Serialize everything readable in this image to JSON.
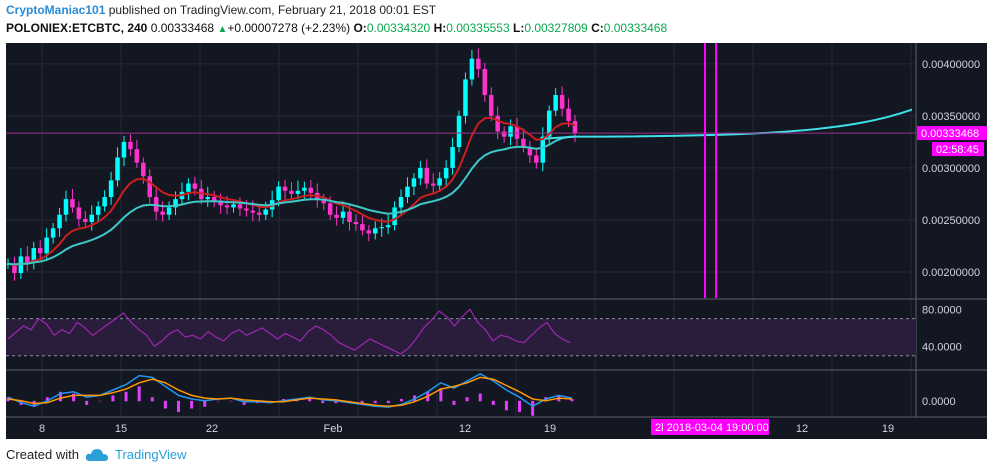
{
  "header": {
    "author": "CryptoManiac101",
    "published_text": "published on TradingView.com, February 21, 2018 00:01 EST",
    "symbol": "POLONIEX:ETCBTC, 240",
    "last": "0.00333468",
    "change": "+0.00007278 (+2.23%)",
    "o_label": "O:",
    "o_value": "0.00334320",
    "h_label": "H:",
    "h_value": "0.00335553",
    "l_label": "L:",
    "l_value": "0.00327809",
    "c_label": "C:",
    "c_value": "0.00333468"
  },
  "footer": {
    "created_with": "Created with",
    "brand": "TradingView"
  },
  "colors": {
    "background": "#131722",
    "grid": "#232836",
    "up_candle": "#00ffff",
    "down_candle": "#ff33cc",
    "ema_red": "#cc1f1f",
    "ema_teal": "#3fc8c8",
    "projection": "#40e0e8",
    "marker_lines": "#ff00ff",
    "rsi_line": "#9c27b0",
    "macd_blue": "#2196f3",
    "macd_signal": "#ff9800",
    "hist": "#e040fb"
  },
  "chart_data": [
    {
      "type": "line",
      "panel": "price",
      "ylim": [
        0.00175,
        0.0042
      ],
      "y_ticks": [
        "0.00400000",
        "0.00350000",
        "0.00300000",
        "0.00250000",
        "0.00200000"
      ],
      "last_price_label": "0.00333468",
      "countdown_label": "02:58:45",
      "series": [
        {
          "style": "candles",
          "values": [
            0.00208,
            0.00199,
            0.00215,
            0.00209,
            0.00223,
            0.00218,
            0.00233,
            0.00242,
            0.00255,
            0.0027,
            0.00262,
            0.00251,
            0.00248,
            0.00255,
            0.00263,
            0.00272,
            0.00288,
            0.0031,
            0.00325,
            0.00318,
            0.00305,
            0.00292,
            0.00272,
            0.00258,
            0.00255,
            0.00262,
            0.0027,
            0.00277,
            0.00285,
            0.0028,
            0.0027,
            0.00272,
            0.00268,
            0.00264,
            0.00262,
            0.00265,
            0.00261,
            0.00259,
            0.00257,
            0.00255,
            0.0026,
            0.00269,
            0.00282,
            0.00278,
            0.00275,
            0.00278,
            0.00281,
            0.00276,
            0.0027,
            0.00266,
            0.00255,
            0.00252,
            0.00258,
            0.00248,
            0.00246,
            0.0024,
            0.00237,
            0.00242,
            0.00243,
            0.00245,
            0.00262,
            0.00272,
            0.00282,
            0.0029,
            0.003,
            0.00285,
            0.00283,
            0.0029,
            0.003,
            0.0032,
            0.0035,
            0.00385,
            0.00405,
            0.00395,
            0.0037,
            0.0035,
            0.00335,
            0.0033,
            0.0034,
            0.00328,
            0.0032,
            0.00312,
            0.00305,
            0.0033,
            0.00355,
            0.0037,
            0.00357,
            0.00345,
            0.00333
          ]
        }
      ]
    },
    {
      "type": "line",
      "panel": "rsi",
      "ylim": [
        20,
        90
      ],
      "y_ticks": [
        "80.0000",
        "40.0000"
      ],
      "bands": [
        70,
        30
      ],
      "values": [
        48,
        55,
        62,
        58,
        70,
        64,
        52,
        58,
        54,
        66,
        60,
        52,
        58,
        64,
        70,
        76,
        66,
        58,
        52,
        40,
        46,
        54,
        58,
        50,
        52,
        48,
        56,
        50,
        46,
        54,
        58,
        52,
        56,
        60,
        54,
        48,
        54,
        50,
        46,
        56,
        62,
        58,
        52,
        44,
        40,
        36,
        42,
        48,
        44,
        40,
        36,
        32,
        38,
        48,
        60,
        68,
        78,
        72,
        62,
        72,
        80,
        66,
        58,
        46,
        52,
        50,
        46,
        44,
        52,
        60,
        66,
        54,
        48,
        44
      ]
    },
    {
      "type": "line",
      "panel": "macd",
      "ylim": [
        -0.00018,
        0.00032
      ],
      "y_ticks": [
        "0.0000"
      ],
      "series": [
        {
          "name": "MACD",
          "values": [
            4e-05,
            -2e-05,
            -6e-05,
            0.0,
            8e-05,
            0.0001,
            4e-05,
            6e-05,
            0.00012,
            0.00018,
            0.00028,
            0.00026,
            0.00016,
            6e-05,
            2e-05,
            0.0,
            2e-05,
            3e-05,
            -1e-05,
            -1e-05,
            -2e-05,
            0.0,
            2e-05,
            4e-05,
            1e-05,
            0.0,
            -2e-05,
            -4e-05,
            -6e-05,
            -7e-05,
            -4e-05,
            2e-05,
            0.0001,
            0.0002,
            0.00014,
            0.00022,
            0.0003,
            0.00022,
            0.00012,
            4e-05,
            -6e-05,
            2e-05,
            6e-05,
            3e-05
          ]
        },
        {
          "name": "Signal",
          "values": [
            2e-05,
            0.0,
            -3e-05,
            -2e-05,
            3e-05,
            6e-05,
            6e-05,
            6e-05,
            9e-05,
            0.00013,
            0.0002,
            0.00024,
            0.0002,
            0.00012,
            6e-05,
            3e-05,
            2e-05,
            3e-05,
            1e-05,
            0.0,
            -1e-05,
            -1e-05,
            1e-05,
            3e-05,
            2e-05,
            1e-05,
            -1e-05,
            -3e-05,
            -5e-05,
            -6e-05,
            -5e-05,
            -1e-05,
            5e-05,
            0.00013,
            0.00016,
            0.0002,
            0.00026,
            0.00024,
            0.00017,
            0.0001,
            2e-05,
            0.0,
            3e-05,
            2e-05
          ]
        }
      ]
    }
  ],
  "x_axis": {
    "labels": [
      "8",
      "15",
      "22",
      "Feb",
      "12",
      "19",
      "12",
      "19"
    ],
    "highlight_label": "2l 2018-03-04 19:00:00"
  }
}
